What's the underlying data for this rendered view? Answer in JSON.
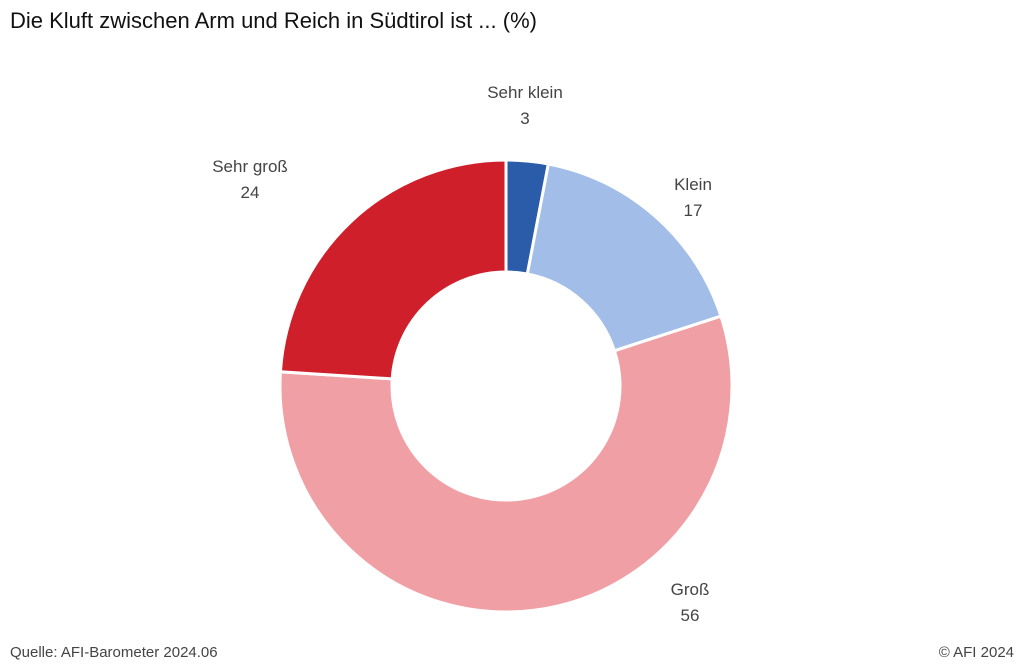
{
  "chart_data": {
    "type": "pie",
    "variant": "donut",
    "title": "Die Kluft zwischen Arm und Reich in Südtirol ist ... (%)",
    "slices": [
      {
        "label": "Sehr klein",
        "value": 3,
        "color": "#2a5caa"
      },
      {
        "label": "Klein",
        "value": 17,
        "color": "#a2bde8"
      },
      {
        "label": "Groß",
        "value": 56,
        "color": "#f0a0a5"
      },
      {
        "label": "Sehr groß",
        "value": 24,
        "color": "#cf1f2a"
      }
    ],
    "source": "Quelle: AFI-Barometer 2024.06",
    "credit": "© AFI 2024"
  }
}
